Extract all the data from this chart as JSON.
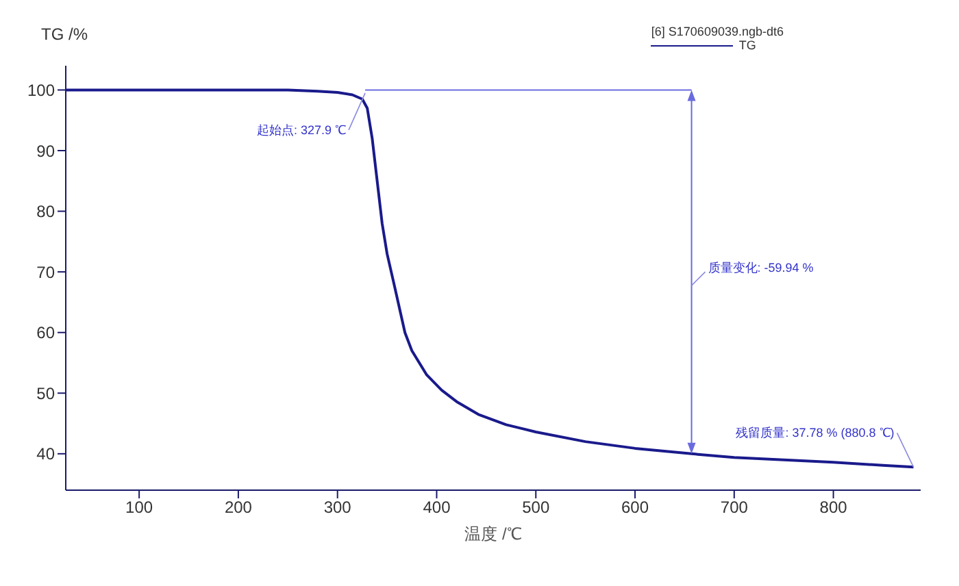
{
  "chart_data": {
    "type": "line",
    "ylabel": "TG /%",
    "xlabel": "温度 /℃",
    "legend_title": "[6] S170609039.ngb-dt6",
    "legend": "top right",
    "marker": "none",
    "line_style": "solid",
    "xlim": [
      26,
      888
    ],
    "xticks": [
      100,
      200,
      300,
      400,
      500,
      600,
      700,
      800
    ],
    "ylim": [
      34,
      104
    ],
    "yticks": [
      40,
      50,
      60,
      70,
      80,
      90,
      100
    ],
    "series": [
      {
        "name": "TG",
        "color": "#1a1a8c",
        "x": [
          26,
          100,
          200,
          250,
          280,
          300,
          315,
          325,
          330,
          335,
          340,
          345,
          350,
          357,
          368,
          375,
          390,
          405,
          421,
          442,
          470,
          500,
          550,
          600,
          657,
          700,
          750,
          800,
          850,
          880.8
        ],
        "values": [
          100,
          100,
          100,
          100,
          99.8,
          99.6,
          99.2,
          98.5,
          97,
          92,
          85,
          78,
          73,
          68,
          60,
          57,
          53,
          50.5,
          48.5,
          46.5,
          44.8,
          43.6,
          42.0,
          40.9,
          40.0,
          39.4,
          39.0,
          38.6,
          38.1,
          37.8
        ]
      },
      {
        "type": "line",
        "color": "#6a6ae0",
        "x": [
          327.9,
          657
        ],
        "values": [
          100,
          100
        ]
      }
    ],
    "annotations": [
      {
        "text": "起始点: 327.9 ℃",
        "x": 327.9,
        "y": 99.5
      },
      "质量变化: -59.94 %",
      {
        "text": "残留质量: 37.78 % (880.8 ℃)",
        "x": 880.8,
        "y": 37.8
      }
    ]
  }
}
